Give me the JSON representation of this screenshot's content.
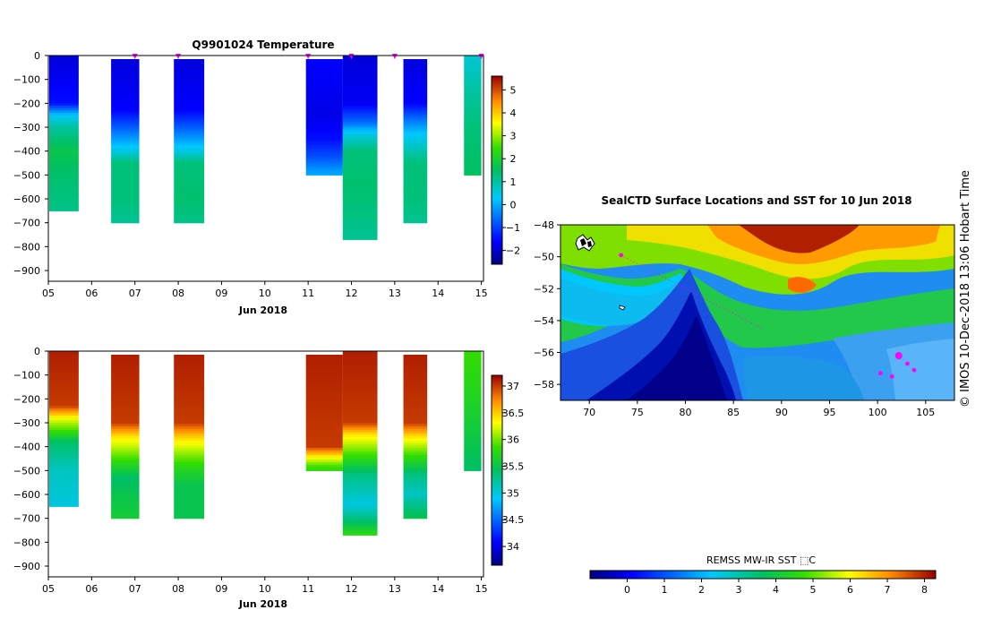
{
  "chart_data": [
    {
      "type": "heatmap",
      "title": "Q9901024  Temperature",
      "xlabel": "Jun 2018",
      "ylabel": "",
      "x_ticks": [
        "05",
        "06",
        "07",
        "08",
        "09",
        "10",
        "11",
        "12",
        "13",
        "14",
        "15"
      ],
      "y_ticks": [
        "0",
        "−100",
        "−200",
        "−300",
        "−400",
        "−500",
        "−600",
        "−700",
        "−800",
        "−900"
      ],
      "xlim": [
        5,
        15.05
      ],
      "ylim": [
        -945,
        0
      ],
      "colorbar": {
        "min": -2.6,
        "max": 5.6,
        "ticks": [
          "5",
          "4",
          "3",
          "2",
          "1",
          "0",
          "−1",
          "−2"
        ],
        "tick_values": [
          5,
          4,
          3,
          2,
          1,
          0,
          -1,
          -2
        ]
      },
      "profiles": [
        {
          "x0": 5.02,
          "x1": 5.7,
          "top": 0,
          "bottom": -650,
          "values": [
            [
              0,
              -1.9
            ],
            [
              -200,
              -1.5
            ],
            [
              -250,
              0.3
            ],
            [
              -300,
              1.0
            ],
            [
              -400,
              1.7
            ],
            [
              -500,
              1.4
            ],
            [
              -650,
              1.2
            ]
          ]
        },
        {
          "x0": 6.45,
          "x1": 7.1,
          "top": -15,
          "bottom": -700,
          "values": [
            [
              0,
              -1.9
            ],
            [
              -230,
              -1.6
            ],
            [
              -320,
              -0.5
            ],
            [
              -400,
              0.5
            ],
            [
              -450,
              1.3
            ],
            [
              -600,
              1.3
            ],
            [
              -700,
              1.1
            ]
          ]
        },
        {
          "x0": 7.9,
          "x1": 8.6,
          "top": -15,
          "bottom": -700,
          "values": [
            [
              0,
              -1.9
            ],
            [
              -230,
              -1.6
            ],
            [
              -320,
              -0.5
            ],
            [
              -400,
              0.5
            ],
            [
              -450,
              1.3
            ],
            [
              -600,
              1.4
            ],
            [
              -700,
              1.2
            ]
          ]
        },
        {
          "x0": 10.95,
          "x1": 11.8,
          "top": -15,
          "bottom": -500,
          "values": [
            [
              0,
              -1.6
            ],
            [
              -250,
              -1.8
            ],
            [
              -350,
              -1.5
            ],
            [
              -430,
              -0.8
            ],
            [
              -480,
              -0.2
            ],
            [
              -500,
              0
            ]
          ]
        },
        {
          "x0": 11.8,
          "x1": 12.6,
          "top": 0,
          "bottom": -770,
          "values": [
            [
              0,
              -1.9
            ],
            [
              -200,
              -1.7
            ],
            [
              -280,
              -0.6
            ],
            [
              -330,
              0.5
            ],
            [
              -400,
              1.3
            ],
            [
              -550,
              1.4
            ],
            [
              -700,
              1.2
            ],
            [
              -770,
              1.1
            ]
          ]
        },
        {
          "x0": 13.2,
          "x1": 13.75,
          "top": -15,
          "bottom": -700,
          "values": [
            [
              0,
              -1.9
            ],
            [
              -200,
              -1.6
            ],
            [
              -270,
              -0.5
            ],
            [
              -330,
              0.3
            ],
            [
              -450,
              1.3
            ],
            [
              -600,
              1.3
            ],
            [
              -700,
              1.1
            ]
          ]
        },
        {
          "x0": 14.6,
          "x1": 15.0,
          "top": 0,
          "bottom": -500,
          "values": [
            [
              0,
              0.6
            ],
            [
              -150,
              1.0
            ],
            [
              -300,
              1.3
            ],
            [
              -500,
              1.5
            ]
          ]
        }
      ],
      "markers_x": [
        7.0,
        8.0,
        11.0,
        12.0,
        13.0,
        15.0
      ]
    },
    {
      "type": "heatmap",
      "title": "",
      "xlabel": "Jun 2018",
      "ylabel": "",
      "x_ticks": [
        "05",
        "06",
        "07",
        "08",
        "09",
        "10",
        "11",
        "12",
        "13",
        "14",
        "15"
      ],
      "y_ticks": [
        "0",
        "−100",
        "−200",
        "−300",
        "−400",
        "−500",
        "−600",
        "−700",
        "−800",
        "−900"
      ],
      "xlim": [
        5,
        15.05
      ],
      "ylim": [
        -945,
        0
      ],
      "colorbar": {
        "min": 33.65,
        "max": 37.2,
        "ticks": [
          "37",
          "36.5",
          "36",
          "35.5",
          "35",
          "34.5",
          "34"
        ],
        "tick_values": [
          37,
          36.5,
          36,
          35.5,
          35,
          34.5,
          34
        ]
      },
      "profiles": [
        {
          "x0": 5.02,
          "x1": 5.7,
          "top": 0,
          "bottom": -650,
          "values": [
            [
              0,
              37.1
            ],
            [
              -230,
              37.0
            ],
            [
              -280,
              36.3
            ],
            [
              -330,
              35.9
            ],
            [
              -380,
              35.4
            ],
            [
              -500,
              35.1
            ],
            [
              -650,
              35.0
            ]
          ]
        },
        {
          "x0": 6.45,
          "x1": 7.1,
          "top": -15,
          "bottom": -700,
          "values": [
            [
              0,
              37.1
            ],
            [
              -300,
              37.0
            ],
            [
              -360,
              36.4
            ],
            [
              -430,
              36.0
            ],
            [
              -480,
              35.7
            ],
            [
              -530,
              35.4
            ],
            [
              -600,
              35.5
            ],
            [
              -700,
              35.6
            ]
          ]
        },
        {
          "x0": 7.9,
          "x1": 8.6,
          "top": -15,
          "bottom": -700,
          "values": [
            [
              0,
              37.1
            ],
            [
              -300,
              37.0
            ],
            [
              -370,
              36.4
            ],
            [
              -440,
              36.0
            ],
            [
              -500,
              35.7
            ],
            [
              -560,
              35.5
            ],
            [
              -700,
              35.5
            ]
          ]
        },
        {
          "x0": 10.95,
          "x1": 11.8,
          "top": -15,
          "bottom": -500,
          "values": [
            [
              0,
              37.1
            ],
            [
              -400,
              37.0
            ],
            [
              -440,
              36.4
            ],
            [
              -480,
              35.9
            ],
            [
              -500,
              35.8
            ]
          ]
        },
        {
          "x0": 11.8,
          "x1": 12.6,
          "top": 0,
          "bottom": -770,
          "values": [
            [
              0,
              37.1
            ],
            [
              -300,
              37.0
            ],
            [
              -350,
              36.4
            ],
            [
              -430,
              35.9
            ],
            [
              -520,
              35.3
            ],
            [
              -640,
              35.0
            ],
            [
              -700,
              35.3
            ],
            [
              -770,
              35.8
            ]
          ]
        },
        {
          "x0": 13.2,
          "x1": 13.75,
          "top": -15,
          "bottom": -700,
          "values": [
            [
              0,
              37.1
            ],
            [
              -300,
              37.0
            ],
            [
              -360,
              36.4
            ],
            [
              -430,
              35.9
            ],
            [
              -520,
              35.3
            ],
            [
              -600,
              35.1
            ],
            [
              -700,
              35.5
            ]
          ]
        },
        {
          "x0": 14.6,
          "x1": 15.0,
          "top": 0,
          "bottom": -500,
          "values": [
            [
              0,
              35.85
            ],
            [
              -200,
              35.7
            ],
            [
              -350,
              35.55
            ],
            [
              -500,
              35.4
            ]
          ]
        }
      ]
    },
    {
      "type": "heatmap",
      "title": "SealCTD Surface Locations and SST for 10 Jun 2018",
      "xlabel": "",
      "ylabel": "",
      "x_ticks": [
        "70",
        "75",
        "80",
        "85",
        "90",
        "95",
        "100",
        "105"
      ],
      "x_tick_values": [
        70,
        75,
        80,
        85,
        90,
        95,
        100,
        105
      ],
      "y_ticks": [
        "−48",
        "−50",
        "−52",
        "−54",
        "−56",
        "−58"
      ],
      "y_tick_values": [
        -48,
        -50,
        -52,
        -54,
        -56,
        -58
      ],
      "xlim": [
        67,
        108
      ],
      "ylim": [
        -59,
        -48
      ],
      "colorbar": {
        "label": "REMSS MW-IR SST ⬚C",
        "min": -1,
        "max": 8.3,
        "ticks": [
          "0",
          "1",
          "2",
          "3",
          "4",
          "5",
          "6",
          "7",
          "8"
        ],
        "tick_values": [
          0,
          1,
          2,
          3,
          4,
          5,
          6,
          7,
          8
        ]
      },
      "sst_field_description_values": {
        "north_warm_max": 7.5,
        "southwest_cold_min": -0.5
      },
      "track_points": [
        {
          "lon": 73.3,
          "lat": -49.9
        },
        {
          "lon": 102.2,
          "lat": -56.2
        },
        {
          "lon": 103.1,
          "lat": -56.7
        },
        {
          "lon": 103.8,
          "lat": -57.1
        },
        {
          "lon": 100.3,
          "lat": -57.3
        },
        {
          "lon": 101.5,
          "lat": -57.5
        }
      ]
    }
  ],
  "credit": "©  IMOS 10-Dec-2018 13:06 Hobart Time",
  "colors": {
    "marker": "#ff00ff",
    "frame": "#000000"
  }
}
